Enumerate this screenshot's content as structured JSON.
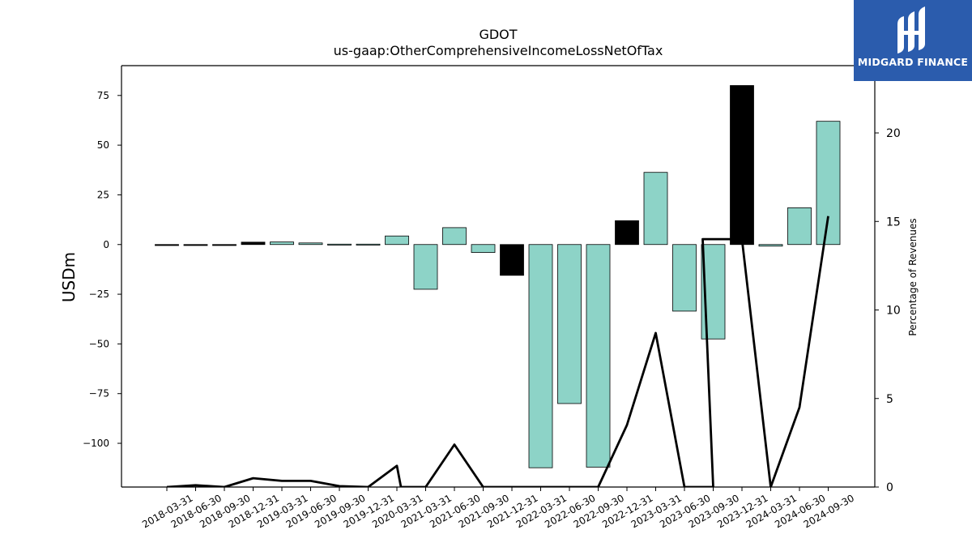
{
  "logo": {
    "text": "MIDGARD FINANCE",
    "icon": "midgard-logo-icon",
    "background": "#2b5cad"
  },
  "chart_data": {
    "type": "bar",
    "title": "GDOT",
    "subtitle": "us-gaap:OtherComprehensiveIncomeLossNetOfTax",
    "ylabel": "USDm",
    "y2label": "Percentage of Revenues",
    "ylim": [
      -122,
      90
    ],
    "y2lim": [
      0,
      23.8
    ],
    "yticks": [
      75,
      50,
      25,
      0,
      -25,
      -50,
      -75,
      -100
    ],
    "yticklabels": [
      "75",
      "50",
      "25",
      "0",
      "−25",
      "−50",
      "−75",
      "−100"
    ],
    "y2ticks": [
      0,
      5,
      10,
      15,
      20
    ],
    "y2ticklabels": [
      "0",
      "5",
      "10",
      "15",
      "20"
    ],
    "grid": false,
    "colors": {
      "positive_trend": "#8dd3c7",
      "change_bar": "#000000",
      "line": "#000000"
    },
    "categories": [
      "2018-03-31",
      "2018-06-30",
      "2018-09-30",
      "2018-12-31",
      "2019-03-31",
      "2019-06-30",
      "2019-09-30",
      "2019-12-31",
      "2020-03-31",
      "2021-03-31",
      "2021-06-30",
      "2021-09-30",
      "2021-12-31",
      "2022-03-31",
      "2022-06-30",
      "2022-09-30",
      "2022-12-31",
      "2023-03-31",
      "2023-06-30",
      "2023-09-30",
      "2023-12-31",
      "2024-03-31",
      "2024-06-30",
      "2024-09-30"
    ],
    "values": [
      -0.5,
      -0.3,
      -0.4,
      1.2,
      1.3,
      0.8,
      0.2,
      0.2,
      4.3,
      -22.5,
      8.5,
      -4.0,
      -15.5,
      -112.3,
      -80.0,
      -112.0,
      12.0,
      36.3,
      -33.5,
      -47.5,
      80.0,
      -0.8,
      18.5,
      62.0
    ],
    "bar_colors": [
      "#000000",
      "#000000",
      "#000000",
      "#000000",
      "#8dd3c7",
      "#8dd3c7",
      "#8dd3c7",
      "#8dd3c7",
      "#8dd3c7",
      "#8dd3c7",
      "#8dd3c7",
      "#8dd3c7",
      "#000000",
      "#8dd3c7",
      "#8dd3c7",
      "#8dd3c7",
      "#000000",
      "#8dd3c7",
      "#8dd3c7",
      "#8dd3c7",
      "#000000",
      "#8dd3c7",
      "#8dd3c7",
      "#8dd3c7"
    ],
    "line_series": {
      "x": [
        "2018-03-31",
        "2018-06-30",
        "2018-09-30",
        "2018-12-31",
        "2019-03-31",
        "2019-06-30",
        "2019-09-30",
        "2019-12-31",
        "2020-03-31",
        "2020-03-31",
        "2021-03-31",
        "2021-06-30",
        "2021-09-30",
        "2022-09-30",
        "2022-12-31",
        "2023-03-31",
        "2023-06-30",
        "2023-09-30",
        "2023-09-30",
        "2023-12-31",
        "2024-03-31",
        "2024-06-30",
        "2024-09-30"
      ],
      "y": [
        0.0,
        0.1,
        0.0,
        0.5,
        0.35,
        0.35,
        0.05,
        0.0,
        1.2,
        0.0,
        0.0,
        2.4,
        0.0,
        0.0,
        3.5,
        8.7,
        0.0,
        0.0,
        14.0,
        14.0,
        0.0,
        4.5,
        15.3
      ]
    }
  }
}
